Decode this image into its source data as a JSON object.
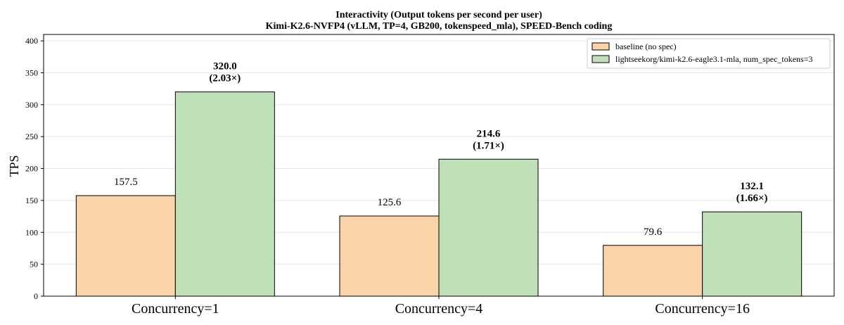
{
  "chart_data": {
    "type": "bar",
    "title": "Interactivity (Output tokens per second per user)",
    "subtitle": "Kimi-K2.6-NVFP4 (vLLM, TP=4, GB200, tokenspeed_mla), SPEED-Bench coding",
    "xlabel": "",
    "ylabel": "TPS",
    "ylim": [
      0,
      410
    ],
    "yticks": [
      0,
      50,
      100,
      150,
      200,
      250,
      300,
      350,
      400
    ],
    "grid": "horizontal",
    "legend_position": "top-right",
    "categories": [
      "Concurrency=1",
      "Concurrency=4",
      "Concurrency=16"
    ],
    "series": [
      {
        "name": "baseline (no spec)",
        "color": "#fad3a6",
        "values": [
          157.5,
          125.6,
          79.6
        ],
        "labels": [
          "157.5",
          "125.6",
          "79.6"
        ],
        "speedups": [
          "",
          "",
          ""
        ]
      },
      {
        "name": "lightseekorg/kimi-k2.6-eagle3.1-mla, num_spec_tokens=3",
        "color": "#c0e1b7",
        "values": [
          320.0,
          214.6,
          132.1
        ],
        "labels": [
          "320.0",
          "214.6",
          "132.1"
        ],
        "speedups": [
          "(2.03×)",
          "(1.71×)",
          "(1.66×)"
        ]
      }
    ]
  }
}
